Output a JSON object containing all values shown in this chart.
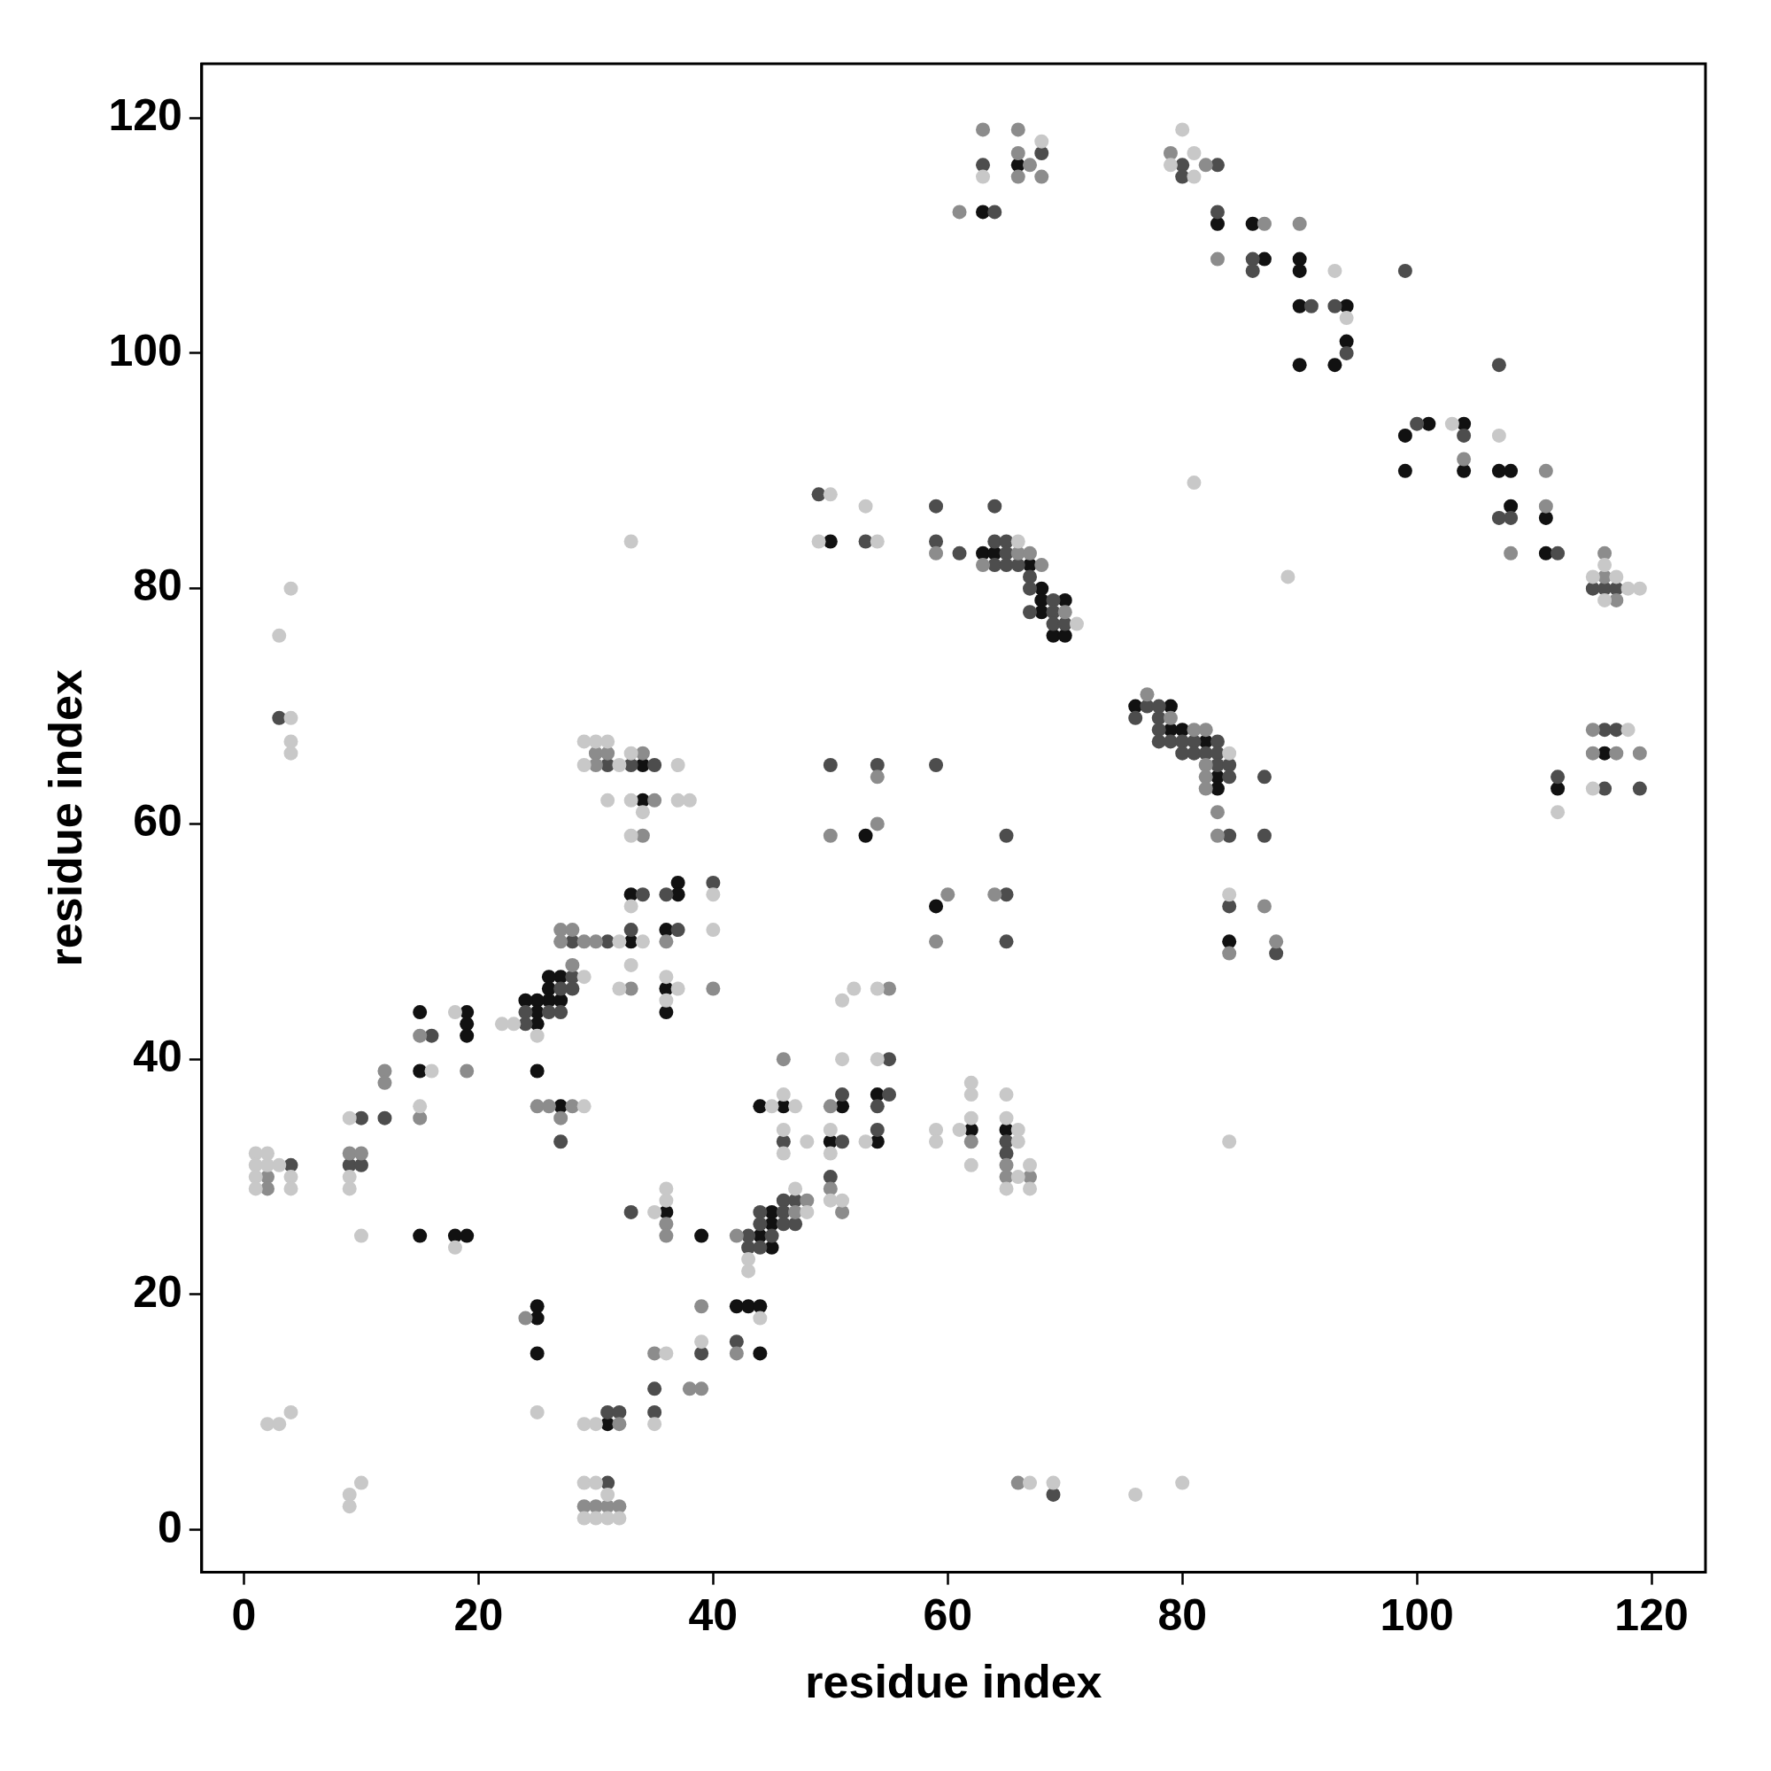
{
  "chart_data": {
    "type": "scatter",
    "xlabel": "residue index",
    "ylabel": "residue index",
    "xlim": [
      -3.6,
      124.6
    ],
    "ylim": [
      -3.6,
      124.6
    ],
    "xticks": [
      0,
      20,
      40,
      60,
      80,
      100,
      120
    ],
    "yticks": [
      0,
      20,
      40,
      60,
      80,
      100,
      120
    ],
    "grid": false,
    "legend": false,
    "marker": "circle",
    "series": [
      {
        "type": "scatter",
        "color": "#c8c8c8",
        "x": [
          68,
          63,
          80,
          81,
          79,
          81,
          93,
          94,
          103,
          107,
          81,
          89,
          116,
          115,
          117,
          118,
          119,
          116,
          118,
          115,
          112,
          50,
          49,
          53,
          54,
          66,
          71,
          84,
          84,
          84,
          29,
          30,
          31,
          29,
          32,
          33,
          31,
          33,
          34,
          37,
          37,
          38,
          33,
          33,
          34,
          32,
          33,
          32,
          36,
          36,
          37,
          40,
          40,
          33,
          29,
          25,
          23,
          22,
          29,
          18,
          16,
          15,
          9,
          9,
          9,
          10,
          18,
          1,
          2,
          1,
          2,
          3,
          1,
          4,
          1,
          4,
          4,
          4,
          4,
          3,
          4,
          2,
          3,
          4,
          9,
          9,
          10,
          25,
          29,
          30,
          29,
          30,
          31,
          29,
          30,
          31,
          32,
          35,
          36,
          36,
          36,
          35,
          39,
          44,
          43,
          43,
          47,
          48,
          45,
          46,
          47,
          46,
          46,
          48,
          50,
          50,
          50,
          51,
          51,
          51,
          52,
          53,
          54,
          54,
          59,
          59,
          61,
          62,
          62,
          62,
          62,
          65,
          65,
          65,
          66,
          66,
          66,
          67,
          67,
          67,
          69,
          76,
          80
        ],
        "values": [
          118,
          115,
          119,
          117,
          116,
          115,
          107,
          103,
          94,
          93,
          89,
          81,
          82,
          81,
          81,
          80,
          80,
          79,
          68,
          63,
          61,
          88,
          84,
          87,
          84,
          84,
          77,
          66,
          54,
          33,
          67,
          67,
          67,
          65,
          65,
          66,
          62,
          62,
          61,
          65,
          62,
          62,
          59,
          53,
          50,
          50,
          48,
          46,
          47,
          45,
          46,
          54,
          51,
          84,
          47,
          42,
          43,
          43,
          36,
          44,
          39,
          36,
          35,
          30,
          29,
          25,
          24,
          32,
          32,
          31,
          31,
          31,
          30,
          30,
          29,
          29,
          69,
          67,
          66,
          76,
          80,
          9,
          9,
          10,
          3,
          2,
          4,
          10,
          9,
          9,
          4,
          4,
          3,
          1,
          1,
          1,
          1,
          27,
          29,
          28,
          15,
          9,
          16,
          18,
          23,
          22,
          29,
          27,
          36,
          37,
          36,
          34,
          32,
          33,
          34,
          32,
          28,
          28,
          40,
          45,
          46,
          33,
          40,
          46,
          34,
          33,
          34,
          31,
          37,
          38,
          35,
          37,
          35,
          29,
          34,
          33,
          30,
          31,
          29,
          4,
          4,
          3,
          4
        ]
      },
      {
        "type": "scatter",
        "color": "#8c8c8c",
        "x": [
          63,
          66,
          66,
          67,
          66,
          68,
          61,
          79,
          82,
          87,
          90,
          83,
          104,
          108,
          111,
          111,
          116,
          116,
          117,
          115,
          115,
          117,
          119,
          59,
          63,
          66,
          67,
          68,
          70,
          77,
          79,
          81,
          82,
          82,
          82,
          82,
          83,
          83,
          84,
          87,
          88,
          50,
          54,
          54,
          60,
          59,
          64,
          30,
          31,
          30,
          34,
          35,
          34,
          33,
          36,
          40,
          27,
          28,
          27,
          29,
          30,
          28,
          25,
          26,
          28,
          27,
          15,
          19,
          12,
          12,
          15,
          9,
          10,
          2,
          2,
          24,
          32,
          29,
          30,
          31,
          32,
          36,
          36,
          35,
          38,
          39,
          39,
          42,
          42,
          47,
          48,
          46,
          50,
          50,
          51,
          55,
          62,
          65,
          65,
          67,
          66
        ],
        "values": [
          119,
          119,
          117,
          116,
          115,
          115,
          112,
          117,
          116,
          111,
          111,
          108,
          91,
          83,
          90,
          87,
          83,
          81,
          79,
          68,
          66,
          66,
          66,
          83,
          82,
          83,
          83,
          82,
          78,
          71,
          69,
          68,
          68,
          65,
          64,
          63,
          61,
          59,
          49,
          53,
          50,
          59,
          64,
          60,
          54,
          50,
          54,
          66,
          66,
          65,
          66,
          62,
          59,
          46,
          50,
          46,
          51,
          51,
          50,
          50,
          50,
          48,
          36,
          36,
          36,
          35,
          42,
          39,
          39,
          38,
          35,
          32,
          32,
          30,
          29,
          18,
          9,
          2,
          2,
          2,
          2,
          26,
          25,
          15,
          12,
          12,
          19,
          15,
          25,
          27,
          28,
          40,
          36,
          29,
          27,
          46,
          33,
          31,
          30,
          30,
          4
        ]
      },
      {
        "type": "scatter",
        "color": "#4d4d4d",
        "x": [
          68,
          63,
          64,
          80,
          80,
          83,
          83,
          86,
          86,
          99,
          91,
          93,
          94,
          107,
          100,
          104,
          107,
          108,
          112,
          115,
          116,
          117,
          116,
          117,
          112,
          116,
          119,
          49,
          53,
          59,
          59,
          61,
          64,
          64,
          64,
          65,
          65,
          65,
          66,
          67,
          67,
          67,
          69,
          69,
          69,
          70,
          76,
          77,
          78,
          78,
          78,
          78,
          79,
          80,
          80,
          81,
          81,
          82,
          83,
          83,
          83,
          84,
          84,
          84,
          84,
          87,
          87,
          88,
          50,
          54,
          59,
          65,
          65,
          65,
          31,
          33,
          35,
          34,
          33,
          36,
          37,
          40,
          28,
          31,
          28,
          28,
          27,
          26,
          27,
          24,
          24,
          27,
          16,
          12,
          10,
          9,
          10,
          4,
          3,
          31,
          32,
          31,
          33,
          35,
          35,
          39,
          42,
          43,
          43,
          44,
          44,
          44,
          45,
          46,
          46,
          46,
          47,
          47,
          46,
          50,
          51,
          51,
          54,
          54,
          55,
          55,
          65,
          65,
          69
        ],
        "values": [
          117,
          116,
          112,
          116,
          115,
          116,
          112,
          108,
          107,
          107,
          104,
          104,
          100,
          99,
          94,
          93,
          86,
          86,
          83,
          80,
          80,
          80,
          68,
          68,
          64,
          63,
          63,
          88,
          84,
          87,
          84,
          83,
          87,
          84,
          82,
          84,
          83,
          82,
          82,
          81,
          80,
          78,
          79,
          78,
          77,
          77,
          69,
          70,
          70,
          69,
          68,
          67,
          67,
          67,
          66,
          67,
          66,
          66,
          67,
          66,
          65,
          65,
          64,
          59,
          53,
          64,
          59,
          49,
          65,
          65,
          65,
          59,
          54,
          50,
          65,
          65,
          65,
          54,
          51,
          54,
          51,
          55,
          50,
          50,
          47,
          46,
          46,
          44,
          44,
          44,
          43,
          33,
          42,
          35,
          35,
          31,
          31,
          31,
          69,
          10,
          10,
          4,
          27,
          12,
          10,
          15,
          16,
          25,
          24,
          27,
          26,
          24,
          25,
          28,
          27,
          26,
          28,
          26,
          33,
          30,
          37,
          33,
          36,
          34,
          40,
          37,
          33,
          32,
          3
        ]
      },
      {
        "type": "scatter",
        "color": "#111111",
        "x": [
          66,
          63,
          83,
          86,
          87,
          90,
          90,
          90,
          94,
          94,
          90,
          93,
          99,
          101,
          104,
          99,
          104,
          107,
          108,
          108,
          111,
          111,
          116,
          112,
          50,
          63,
          64,
          67,
          68,
          68,
          68,
          69,
          70,
          70,
          76,
          79,
          79,
          80,
          82,
          83,
          83,
          84,
          53,
          59,
          34,
          34,
          33,
          33,
          37,
          37,
          36,
          36,
          36,
          27,
          26,
          26,
          26,
          27,
          25,
          24,
          25,
          25,
          25,
          27,
          15,
          19,
          19,
          19,
          15,
          15,
          18,
          19,
          25,
          25,
          25,
          31,
          36,
          39,
          42,
          43,
          44,
          44,
          44,
          45,
          45,
          45,
          44,
          46,
          50,
          51,
          54,
          54,
          62,
          65
        ],
        "values": [
          116,
          112,
          111,
          111,
          108,
          108,
          107,
          104,
          104,
          101,
          99,
          99,
          93,
          94,
          94,
          90,
          90,
          90,
          90,
          87,
          86,
          83,
          66,
          63,
          84,
          83,
          83,
          82,
          80,
          79,
          78,
          76,
          79,
          76,
          70,
          70,
          68,
          68,
          67,
          64,
          63,
          50,
          59,
          53,
          65,
          62,
          54,
          50,
          55,
          54,
          51,
          46,
          44,
          47,
          47,
          46,
          45,
          45,
          45,
          45,
          44,
          43,
          39,
          36,
          44,
          44,
          43,
          42,
          39,
          25,
          25,
          25,
          19,
          18,
          15,
          9,
          27,
          25,
          19,
          19,
          19,
          15,
          25,
          27,
          26,
          24,
          36,
          36,
          33,
          36,
          37,
          33,
          34,
          34
        ]
      }
    ]
  }
}
